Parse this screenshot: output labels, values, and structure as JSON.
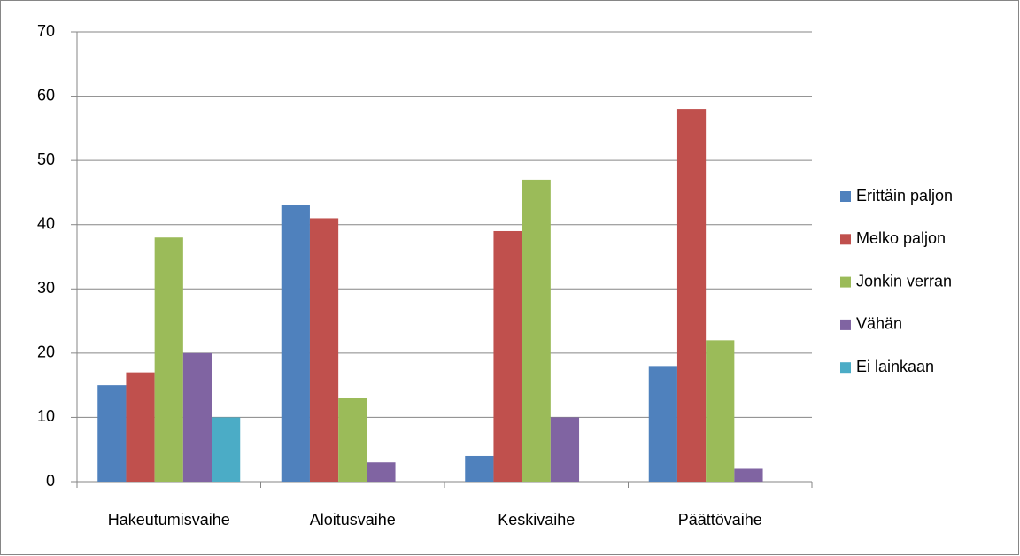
{
  "chart_data": {
    "type": "bar",
    "categories": [
      "Hakeutumisvaihe",
      "Aloitusvaihe",
      "Keskivaihe",
      "Päättövaihe"
    ],
    "series": [
      {
        "name": "Erittäin paljon",
        "color": "#4f81bd",
        "values": [
          15,
          43,
          4,
          18
        ]
      },
      {
        "name": "Melko paljon",
        "color": "#c0504d",
        "values": [
          17,
          41,
          39,
          58
        ]
      },
      {
        "name": "Jonkin verran",
        "color": "#9bbb59",
        "values": [
          38,
          13,
          47,
          22
        ]
      },
      {
        "name": "Vähän",
        "color": "#8064a2",
        "values": [
          20,
          3,
          10,
          2
        ]
      },
      {
        "name": "Ei lainkaan",
        "color": "#4bacc6",
        "values": [
          10,
          0,
          0,
          0
        ]
      }
    ],
    "ylim": [
      0,
      70
    ],
    "yticks": [
      0,
      10,
      20,
      30,
      40,
      50,
      60,
      70
    ],
    "grid": true,
    "legend": "right"
  }
}
